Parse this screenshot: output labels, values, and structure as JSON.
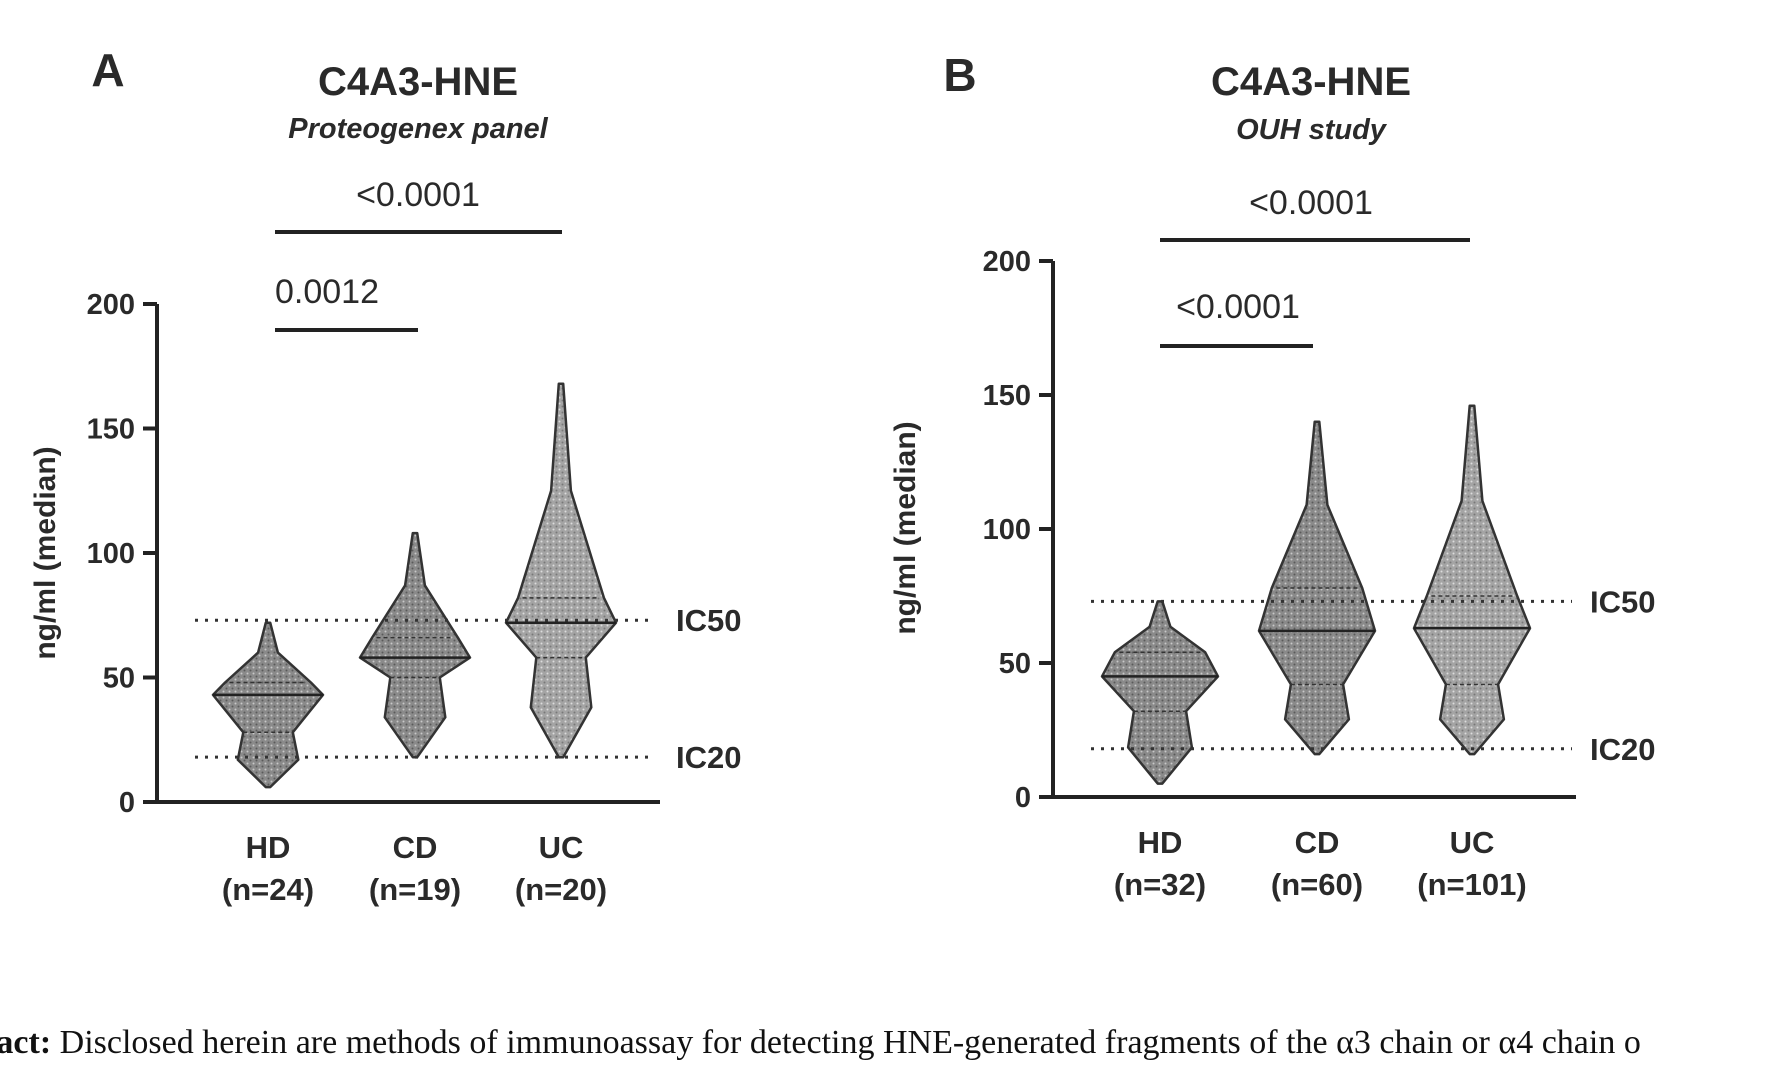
{
  "caption": {
    "label": "tract:",
    "text": "Disclosed herein are methods of immunoassay for detecting HNE-generated fragments of the α3 chain or α4 chain o"
  },
  "chart_data": [
    {
      "type": "violin",
      "panel": "A",
      "title": "C4A3-HNE",
      "subtitle": "Proteogenex panel",
      "ylabel": "ng/ml (median)",
      "ylim": [
        0,
        200
      ],
      "yticks": [
        "0",
        "50",
        "100",
        "150",
        "200"
      ],
      "categories": [
        "HD",
        "CD",
        "UC"
      ],
      "counts": [
        "(n=24)",
        "(n=19)",
        "(n=20)"
      ],
      "medians": [
        43,
        58,
        72
      ],
      "quartiles": [
        [
          28,
          48
        ],
        [
          50,
          66
        ],
        [
          58,
          82
        ]
      ],
      "min": [
        6,
        18,
        18
      ],
      "max": [
        72,
        108,
        168
      ],
      "reference_lines": [
        {
          "label": "IC50",
          "value": 73
        },
        {
          "label": "IC20",
          "value": 18
        }
      ],
      "significance": [
        {
          "label": "0.0012",
          "from": "HD",
          "to": "CD"
        },
        {
          "label": "<0.0001",
          "from": "HD",
          "to": "UC"
        }
      ]
    },
    {
      "type": "violin",
      "panel": "B",
      "title": "C4A3-HNE",
      "subtitle": "OUH study",
      "ylabel": "ng/ml (median)",
      "ylim": [
        0,
        200
      ],
      "yticks": [
        "0",
        "50",
        "100",
        "150",
        "200"
      ],
      "categories": [
        "HD",
        "CD",
        "UC"
      ],
      "counts": [
        "(n=32)",
        "(n=60)",
        "(n=101)"
      ],
      "medians": [
        45,
        62,
        63
      ],
      "quartiles": [
        [
          32,
          54
        ],
        [
          42,
          78
        ],
        [
          42,
          75
        ]
      ],
      "min": [
        5,
        16,
        16
      ],
      "max": [
        73,
        140,
        146
      ],
      "reference_lines": [
        {
          "label": "IC50",
          "value": 73
        },
        {
          "label": "IC20",
          "value": 18
        }
      ],
      "significance": [
        {
          "label": "<0.0001",
          "from": "HD",
          "to": "CD"
        },
        {
          "label": "<0.0001",
          "from": "HD",
          "to": "UC"
        }
      ]
    }
  ]
}
